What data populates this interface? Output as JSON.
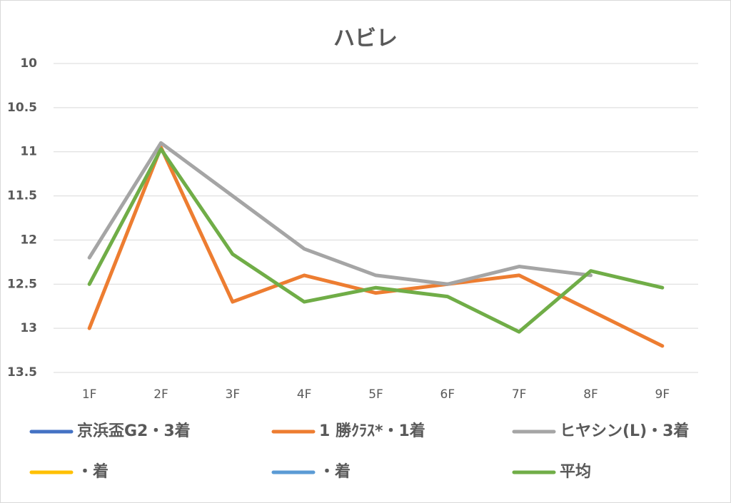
{
  "chart_data": {
    "type": "line",
    "title": "ハビレ",
    "categories": [
      "1F",
      "2F",
      "3F",
      "4F",
      "5F",
      "6F",
      "7F",
      "8F",
      "9F"
    ],
    "series": [
      {
        "name": "京浜盃G2・3着",
        "color": "#4472c4",
        "values": [
          null,
          null,
          null,
          null,
          null,
          null,
          null,
          null,
          null
        ]
      },
      {
        "name": "1 勝ｸﾗｽ*・1着",
        "color": "#ed7d31",
        "values": [
          13.0,
          10.95,
          12.7,
          12.4,
          12.6,
          12.5,
          12.4,
          12.8,
          13.2
        ]
      },
      {
        "name": "ヒヤシン(L)・3着",
        "color": "#a5a5a5",
        "values": [
          12.2,
          10.9,
          11.5,
          12.1,
          12.4,
          12.5,
          12.3,
          12.4,
          null
        ]
      },
      {
        "name": "・着",
        "color": "#ffc000",
        "values": [
          null,
          null,
          null,
          null,
          null,
          null,
          null,
          null,
          null
        ]
      },
      {
        "name": "・着",
        "color": "#5b9bd5",
        "values": [
          null,
          null,
          null,
          null,
          null,
          null,
          null,
          null,
          null
        ]
      },
      {
        "name": "平均",
        "color": "#70ad47",
        "values": [
          12.5,
          10.97,
          12.16,
          12.7,
          12.54,
          12.64,
          13.04,
          12.35,
          12.54
        ]
      }
    ],
    "ylim": [
      10,
      13.5
    ],
    "y_inverted": true,
    "yticks": [
      10,
      10.5,
      11,
      11.5,
      12,
      12.5,
      13,
      13.5
    ],
    "grid": true,
    "legend": "bottom"
  }
}
